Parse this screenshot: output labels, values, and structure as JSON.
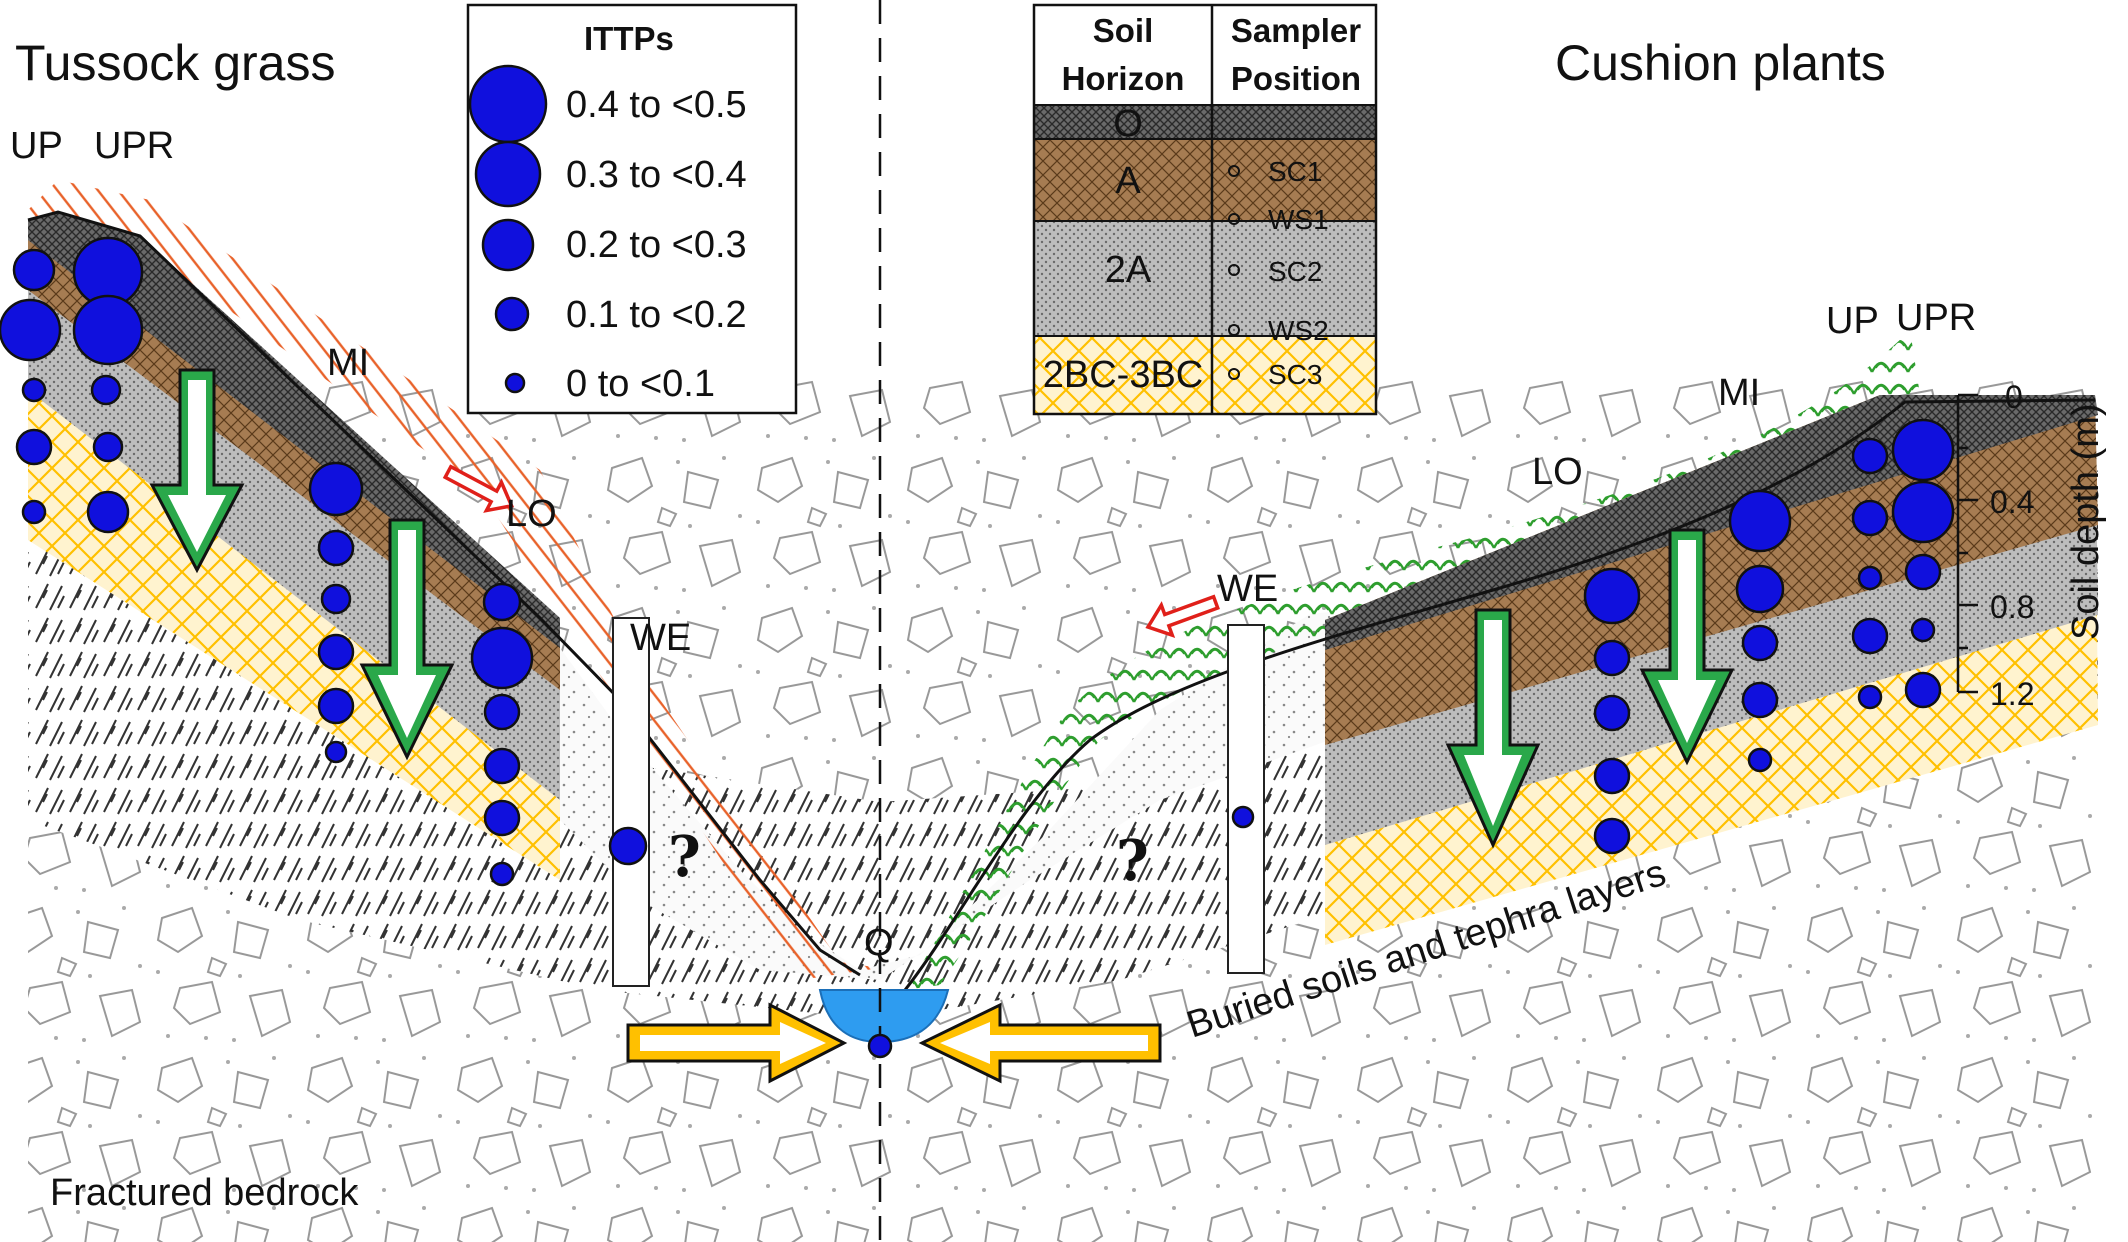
{
  "left_title": "Tussock grass",
  "right_title": "Cushion plants",
  "landscape_positions": {
    "left": [
      "UP",
      "UPR",
      "MI",
      "LO",
      "WE"
    ],
    "right": [
      "WE",
      "LO",
      "MI",
      "UP",
      "UPR"
    ],
    "stream": "Q"
  },
  "unknown_mark": "?",
  "legend": {
    "title": "ITTPs",
    "classes": [
      "0.4 to <0.5",
      "0.3 to <0.4",
      "0.2 to <0.3",
      "0.1 to <0.2",
      "0 to <0.1"
    ]
  },
  "horizon_table": {
    "headers": {
      "horizon_line1": "Soil",
      "horizon_line2": "Horizon",
      "position_line1": "Sampler",
      "position_line2": "Position"
    },
    "horizons": [
      "O",
      "A",
      "2A",
      "2BC-3BC"
    ],
    "samplers": [
      "SC1",
      "WS1",
      "SC2",
      "WS2",
      "SC3"
    ]
  },
  "depth_axis": {
    "label": "Soil depth (m)",
    "ticks": [
      "0",
      "0.4",
      "0.8",
      "1.2"
    ]
  },
  "annotations": {
    "buried": "Buried soils and tephra layers",
    "bedrock": "Fractured bedrock"
  },
  "colors": {
    "ittp_circle": "#1010dd",
    "o_horizon": "#6f6f6f",
    "a_horizon": "#a67c52",
    "2a_horizon": "#b8b8b8",
    "bc_horizon": "#fff2cc",
    "bc_hatch": "#ffc000",
    "stream": "#2e9cf0",
    "percolation_arrow": "#28a745",
    "lateral_flow_arrow": "#ffc000",
    "surface_flow_arrow": "#e0201a",
    "tussock": "#e8622a",
    "cushion": "#2e9e2e"
  }
}
